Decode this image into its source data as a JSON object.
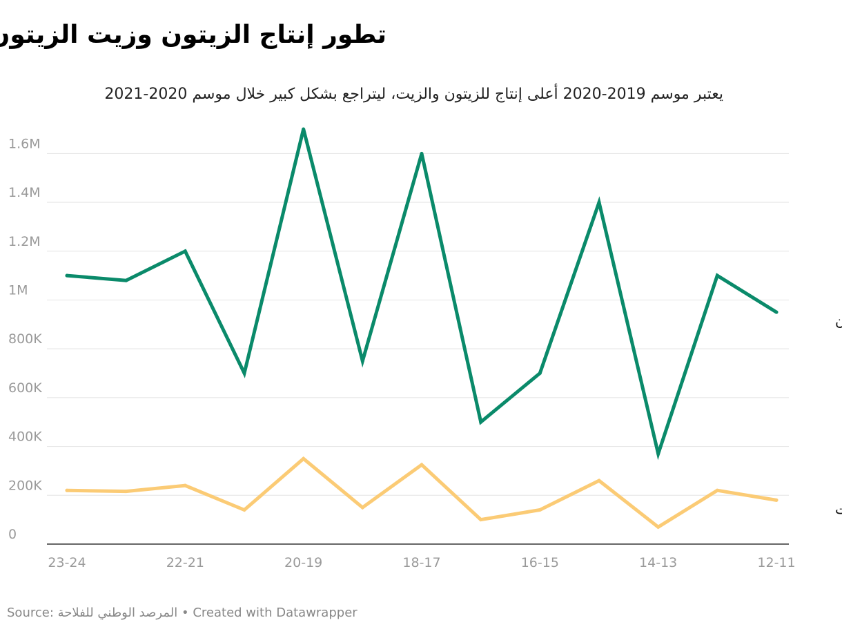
{
  "title": "تطور إنتاج الزيتون وزيت الزيتون:",
  "subtitle": "يعتبر موسم 2019-2020 أعلى إنتاج للزيتون والزيت، ليتراجع بشكل كبير خلال موسم 2020-2021",
  "footer": {
    "source_label": "Source:",
    "source_name": "المرصد الوطني للفلاحة",
    "separator": "•",
    "credit": "Created with Datawrapper"
  },
  "colors": {
    "olive": "#0a8a6a",
    "oil": "#fbcb75",
    "grid": "#e2e2e2",
    "axis": "#333333"
  },
  "chart_data": {
    "type": "line",
    "title": "تطور إنتاج الزيتون وزيت الزيتون:",
    "subtitle": "يعتبر موسم 2019-2020 أعلى إنتاج للزيتون والزيت، ليتراجع بشكل كبير خلال موسم 2020-2021",
    "x_labels": [
      "23-24",
      "",
      "22-21",
      "",
      "20-19",
      "",
      "18-17",
      "",
      "16-15",
      "",
      "14-13",
      "",
      "12-11"
    ],
    "y_ticks": [
      {
        "value": 0,
        "label": "0"
      },
      {
        "value": 200000,
        "label": "200K"
      },
      {
        "value": 400000,
        "label": "400K"
      },
      {
        "value": 600000,
        "label": "600K"
      },
      {
        "value": 800000,
        "label": "800K"
      },
      {
        "value": 1000000,
        "label": "1M"
      },
      {
        "value": 1200000,
        "label": "1.2M"
      },
      {
        "value": 1400000,
        "label": "1.4M"
      },
      {
        "value": 1600000,
        "label": "1.6M"
      }
    ],
    "ylim": [
      0,
      1700000
    ],
    "grid": true,
    "series": [
      {
        "name": "الزيتون",
        "color": "#0a8a6a",
        "values": [
          1100000,
          1080000,
          1200000,
          700000,
          1700000,
          750000,
          1600000,
          500000,
          700000,
          1400000,
          370000,
          1100000,
          950000
        ]
      },
      {
        "name": "الزيت",
        "color": "#fbcb75",
        "values": [
          220000,
          216000,
          240000,
          140000,
          350000,
          150000,
          325000,
          100000,
          140000,
          260000,
          70000,
          220000,
          180000
        ]
      }
    ]
  }
}
